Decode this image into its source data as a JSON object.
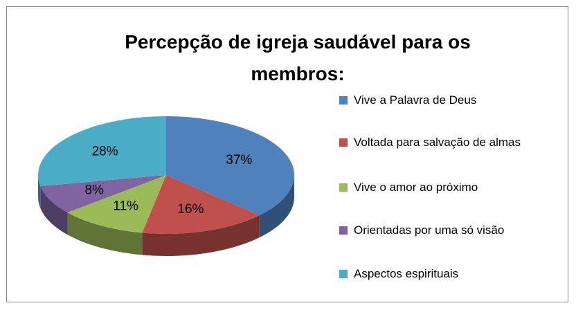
{
  "chart_data": {
    "type": "pie3d",
    "title": "Percepção de igreja saudável para os membros:",
    "categories": [
      "Vive a Palavra de Deus",
      "Voltada para salvação de almas",
      "Vive o amor ao próximo",
      "Orientadas por uma só visão",
      "Aspectos espirituais"
    ],
    "values": [
      37,
      16,
      11,
      8,
      28
    ],
    "value_labels": [
      "37%",
      "16%",
      "11%",
      "8%",
      "28%"
    ],
    "colors": [
      "#4f81bd",
      "#c0504d",
      "#9bbb59",
      "#8064a2",
      "#4bacc6"
    ],
    "legend": "right"
  }
}
